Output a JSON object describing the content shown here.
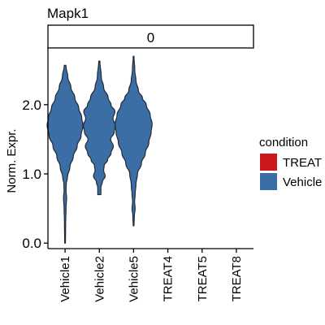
{
  "chart_data": {
    "type": "violin",
    "title": "Mapk1",
    "facet_label": "0",
    "ylabel": "Norm. Expr.",
    "xlabel": "",
    "categories": [
      "Vehicle1",
      "Vehicle2",
      "Vehicle5",
      "TREAT4",
      "TREAT5",
      "TREAT8"
    ],
    "ylim": [
      -0.08,
      2.82
    ],
    "yticks": [
      0.0,
      1.0,
      2.0
    ],
    "ytick_labels": [
      "0.0",
      "1.0",
      "2.0"
    ],
    "grid": false,
    "legend": {
      "title": "condition",
      "placement": "right",
      "entries": [
        {
          "label": "TREAT",
          "color": "#cb181d"
        },
        {
          "label": "Vehicle",
          "color": "#3a6ea5"
        }
      ]
    },
    "series": [
      {
        "category": "Vehicle1",
        "condition": "Vehicle",
        "min": 0.0,
        "max": 2.57,
        "density": [
          [
            0.0,
            0.02
          ],
          [
            0.3,
            0.03
          ],
          [
            0.5,
            0.05
          ],
          [
            0.66,
            0.08
          ],
          [
            0.75,
            0.05
          ],
          [
            0.85,
            0.06
          ],
          [
            0.95,
            0.12
          ],
          [
            1.1,
            0.25
          ],
          [
            1.25,
            0.42
          ],
          [
            1.4,
            0.62
          ],
          [
            1.55,
            0.82
          ],
          [
            1.7,
            0.92
          ],
          [
            1.82,
            0.85
          ],
          [
            1.95,
            0.7
          ],
          [
            2.1,
            0.5
          ],
          [
            2.25,
            0.3
          ],
          [
            2.4,
            0.14
          ],
          [
            2.57,
            0.04
          ]
        ]
      },
      {
        "category": "Vehicle2",
        "condition": "Vehicle",
        "min": 0.7,
        "max": 2.63,
        "density": [
          [
            0.7,
            0.08
          ],
          [
            0.8,
            0.08
          ],
          [
            0.88,
            0.15
          ],
          [
            0.97,
            0.3
          ],
          [
            1.05,
            0.22
          ],
          [
            1.12,
            0.25
          ],
          [
            1.2,
            0.42
          ],
          [
            1.3,
            0.6
          ],
          [
            1.4,
            0.72
          ],
          [
            1.5,
            0.58
          ],
          [
            1.6,
            0.76
          ],
          [
            1.7,
            0.82
          ],
          [
            1.8,
            0.7
          ],
          [
            1.9,
            0.8
          ],
          [
            2.0,
            0.6
          ],
          [
            2.1,
            0.45
          ],
          [
            2.25,
            0.22
          ],
          [
            2.4,
            0.1
          ],
          [
            2.63,
            0.03
          ]
        ]
      },
      {
        "category": "Vehicle5",
        "condition": "Vehicle",
        "min": 0.25,
        "max": 2.7,
        "density": [
          [
            0.25,
            0.02
          ],
          [
            0.4,
            0.04
          ],
          [
            0.5,
            0.08
          ],
          [
            0.6,
            0.05
          ],
          [
            0.7,
            0.08
          ],
          [
            0.85,
            0.12
          ],
          [
            1.0,
            0.2
          ],
          [
            1.15,
            0.4
          ],
          [
            1.3,
            0.6
          ],
          [
            1.45,
            0.78
          ],
          [
            1.6,
            0.9
          ],
          [
            1.72,
            0.95
          ],
          [
            1.85,
            0.85
          ],
          [
            2.0,
            0.65
          ],
          [
            2.1,
            0.45
          ],
          [
            2.2,
            0.25
          ],
          [
            2.35,
            0.12
          ],
          [
            2.5,
            0.06
          ],
          [
            2.7,
            0.02
          ]
        ]
      }
    ]
  }
}
